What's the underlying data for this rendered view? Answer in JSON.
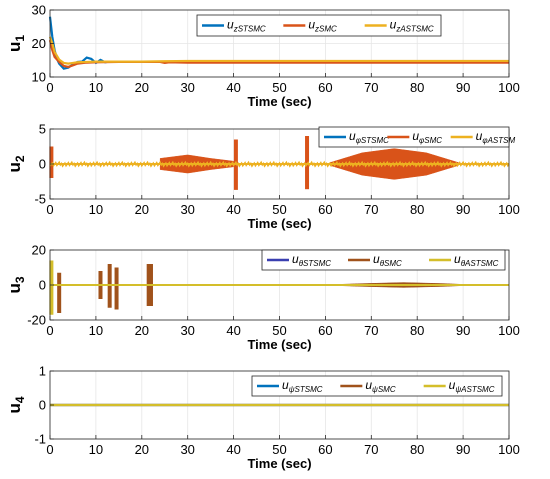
{
  "chart_data": [
    {
      "type": "line",
      "ylabel": "u",
      "ylabel_sub": "1",
      "xlabel": "Time (sec)",
      "xlim": [
        0,
        100
      ],
      "ylim": [
        10,
        30
      ],
      "xticks": [
        0,
        10,
        20,
        30,
        40,
        50,
        60,
        70,
        80,
        90,
        100
      ],
      "yticks": [
        10,
        20,
        30
      ],
      "legend_position": "top-center",
      "series": [
        {
          "name": "u_{zSTSMC}",
          "color": "#0072BD",
          "x": [
            0,
            0.5,
            1,
            1.5,
            2,
            3,
            4,
            5,
            6,
            7,
            8,
            9,
            10,
            11,
            12,
            13,
            15,
            20,
            25,
            30,
            100
          ],
          "y": [
            28,
            22,
            18,
            15.5,
            14,
            12.5,
            12.8,
            13.8,
            14.5,
            14.6,
            15.8,
            15.4,
            14.2,
            15.1,
            14.4,
            14.6,
            14.6,
            14.6,
            14.6,
            14.6,
            14.6
          ]
        },
        {
          "name": "u_{zSMC}",
          "color": "#D95319",
          "x": [
            0,
            0.5,
            1,
            2,
            3,
            4,
            5,
            6,
            8,
            10,
            15,
            20,
            24,
            25,
            26,
            30,
            100
          ],
          "y": [
            21,
            18,
            16,
            14.5,
            13.3,
            13.0,
            13.5,
            14.0,
            14.3,
            14.4,
            14.5,
            14.5,
            14.5,
            14.2,
            14.4,
            14.3,
            14.3
          ]
        },
        {
          "name": "u_{zASTSMC}",
          "color": "#EDB120",
          "x": [
            0,
            0.5,
            1,
            2,
            3,
            4,
            5,
            6,
            8,
            10,
            12,
            15,
            20,
            25,
            30,
            100
          ],
          "y": [
            22,
            20,
            17.5,
            15.2,
            14.2,
            14.0,
            14.2,
            14.4,
            14.5,
            14.6,
            14.6,
            14.6,
            14.6,
            14.7,
            14.8,
            14.8
          ]
        }
      ]
    },
    {
      "type": "line",
      "ylabel": "u",
      "ylabel_sub": "2",
      "xlabel": "Time (sec)",
      "xlim": [
        0,
        100
      ],
      "ylim": [
        -5,
        5
      ],
      "xticks": [
        0,
        10,
        20,
        30,
        40,
        50,
        60,
        70,
        80,
        90,
        100
      ],
      "yticks": [
        -5,
        0,
        5
      ],
      "legend_position": "top-right",
      "series": [
        {
          "name": "u_{φSTSMC}",
          "color": "#0072BD",
          "baseline": 0
        },
        {
          "name": "u_{φSMC}",
          "color": "#D95319",
          "baseline": 0,
          "envelopes": [
            {
              "x": [
                24,
                30,
                35,
                40
              ],
              "amp": [
                0.8,
                1.3,
                0.8,
                0.4
              ]
            },
            {
              "x": [
                61,
                68,
                75,
                82,
                89
              ],
              "amp": [
                0.2,
                1.6,
                2.2,
                1.6,
                0.2
              ]
            }
          ],
          "spikes": [
            {
              "x": 0.3,
              "ymin": -2.0,
              "ymax": 2.5
            },
            {
              "x": 40.5,
              "ymin": -3.7,
              "ymax": 3.5
            },
            {
              "x": 56,
              "ymin": -3.6,
              "ymax": 4.0
            }
          ]
        },
        {
          "name": "u_{φASTSM",
          "color": "#EDB120",
          "baseline": 0,
          "noise_amp": 0.3
        }
      ]
    },
    {
      "type": "line",
      "ylabel": "u",
      "ylabel_sub": "3",
      "xlabel": "Time (sec)",
      "xlim": [
        0,
        100
      ],
      "ylim": [
        -20,
        20
      ],
      "xticks": [
        0,
        10,
        20,
        30,
        40,
        50,
        60,
        70,
        80,
        90,
        100
      ],
      "yticks": [
        -20,
        0,
        20
      ],
      "legend_position": "top-right",
      "series": [
        {
          "name": "u_{θSTSMC}",
          "color": "#3A3FB0",
          "baseline": 0
        },
        {
          "name": "u_{θSMC}",
          "color": "#A0521B",
          "baseline": 0,
          "spikes": [
            {
              "x": 2,
              "ymin": -16,
              "ymax": 7
            },
            {
              "x": 11,
              "ymin": -8,
              "ymax": 8
            },
            {
              "x": 13,
              "ymin": -13,
              "ymax": 12
            },
            {
              "x": 14.5,
              "ymin": -14,
              "ymax": 10
            },
            {
              "x": 21.5,
              "ymin": -12,
              "ymax": 12
            },
            {
              "x": 22,
              "ymin": -12,
              "ymax": 12
            }
          ],
          "envelopes": [
            {
              "x": [
                60,
                68,
                77,
                86,
                92
              ],
              "amp": [
                0.1,
                0.8,
                1.4,
                0.8,
                0.1
              ]
            }
          ]
        },
        {
          "name": "u_{θASTSMC}",
          "color": "#D4BE2A",
          "baseline": 0,
          "spikes": [
            {
              "x": 0.3,
              "ymin": -17,
              "ymax": 14
            }
          ]
        }
      ]
    },
    {
      "type": "line",
      "ylabel": "u",
      "ylabel_sub": "4",
      "xlabel": "Time (sec)",
      "xlim": [
        0,
        100
      ],
      "ylim": [
        -1,
        1
      ],
      "xticks": [
        0,
        10,
        20,
        30,
        40,
        50,
        60,
        70,
        80,
        90,
        100
      ],
      "yticks": [
        -1,
        0,
        1
      ],
      "legend_position": "top-right",
      "series": [
        {
          "name": "u_{ψSTSMC}",
          "color": "#0072BD",
          "x": [
            0,
            100
          ],
          "y": [
            0,
            0
          ]
        },
        {
          "name": "u_{ψSMC}",
          "color": "#A0521B",
          "x": [
            0,
            100
          ],
          "y": [
            0,
            0
          ]
        },
        {
          "name": "u_{ψASTSMC}",
          "color": "#D4BE2A",
          "x": [
            0,
            100
          ],
          "y": [
            0,
            0
          ]
        }
      ]
    }
  ]
}
